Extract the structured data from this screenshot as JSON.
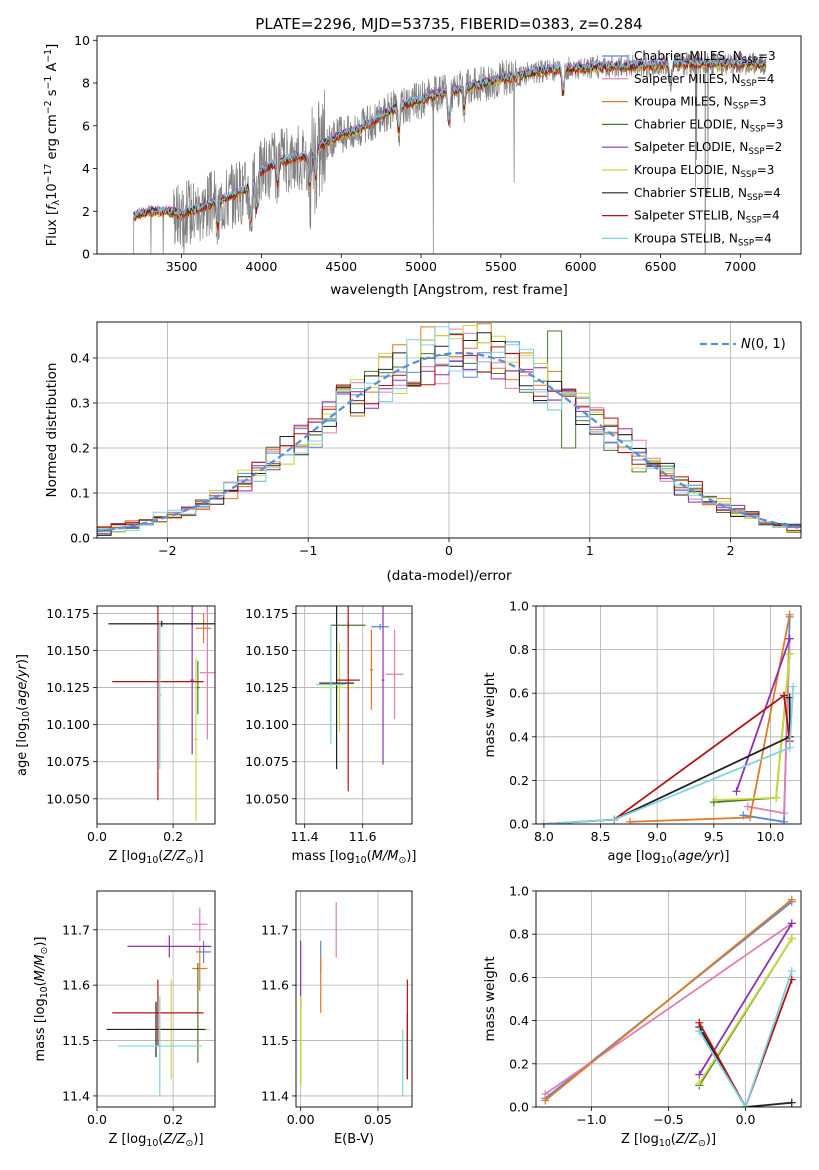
{
  "figure": {
    "title": "PLATE=2296, MJD=53735, FIBERID=0383, z=0.284",
    "colors": {
      "Chabrier MILES": "#5a86d6",
      "Salpeter MILES": "#e07fb0",
      "Kroupa MILES": "#e07a24",
      "Chabrier ELODIE": "#4d7a2e",
      "Salpeter ELODIE": "#8f2fb2",
      "Kroupa ELODIE": "#c7dc3c",
      "Chabrier STELIB": "#222222",
      "Salpeter STELIB": "#b01515",
      "Kroupa STELIB": "#7fd2e0"
    }
  },
  "chart_data": [
    {
      "id": "spectrum",
      "type": "line",
      "title": "PLATE=2296, MJD=53735, FIBERID=0383, z=0.284",
      "xlabel": "wavelength [Angstrom, rest frame]",
      "ylabel": "Flux [f_λ 10^-17 erg cm^-2 s^-1 A^-1]",
      "xlim": [
        2970,
        7380
      ],
      "ylim": [
        0,
        10.2
      ],
      "xticks": [
        3500,
        4000,
        4500,
        5000,
        5500,
        6000,
        6500,
        7000
      ],
      "yticks": [
        0,
        2,
        4,
        6,
        8,
        10
      ],
      "grid": false,
      "legend_position": "top-right",
      "legend": [
        "Chabrier MILES, N_SSP=3",
        "Salpeter MILES, N_SSP=4",
        "Kroupa MILES, N_SSP=3",
        "Chabrier ELODIE, N_SSP=3",
        "Salpeter ELODIE, N_SSP=2",
        "Kroupa ELODIE, N_SSP=3",
        "Chabrier STELIB, N_SSP=4",
        "Salpeter STELIB, N_SSP=4",
        "Kroupa STELIB, N_SSP=4"
      ],
      "data_color": "#808080",
      "continuum": {
        "x": [
          3200,
          3300,
          3400,
          3500,
          3600,
          3700,
          3800,
          3900,
          4000,
          4100,
          4200,
          4300,
          4400,
          4500,
          4600,
          4700,
          4800,
          4900,
          5000,
          5100,
          5200,
          5300,
          5400,
          5500,
          5600,
          5700,
          5800,
          5900,
          6000,
          6200,
          6400,
          6600,
          6800,
          7000,
          7150
        ],
        "y": [
          1.8,
          2.0,
          2.0,
          1.9,
          2.1,
          2.4,
          2.7,
          3.0,
          3.9,
          4.3,
          4.5,
          4.6,
          5.2,
          5.6,
          5.8,
          6.2,
          6.7,
          7.0,
          7.2,
          7.5,
          7.6,
          7.8,
          8.0,
          8.2,
          8.3,
          8.5,
          8.6,
          8.7,
          8.7,
          8.8,
          8.8,
          8.9,
          8.9,
          8.9,
          8.9
        ]
      },
      "absorption_lines": [
        {
          "x": 3727,
          "depth": 1.2
        },
        {
          "x": 3934,
          "depth": 1.8
        },
        {
          "x": 3969,
          "depth": 1.6
        },
        {
          "x": 4101,
          "depth": 1.0
        },
        {
          "x": 4304,
          "depth": 1.5
        },
        {
          "x": 4340,
          "depth": 1.2
        },
        {
          "x": 4861,
          "depth": 1.2
        },
        {
          "x": 5175,
          "depth": 1.4
        },
        {
          "x": 5270,
          "depth": 0.9
        },
        {
          "x": 5890,
          "depth": 1.2
        },
        {
          "x": 6563,
          "depth": 1.0
        }
      ],
      "model_series": [
        {
          "name": "Chabrier MILES",
          "color": "#5a86d6",
          "offset": 0.05
        },
        {
          "name": "Salpeter MILES",
          "color": "#e07fb0",
          "offset": 0.1
        },
        {
          "name": "Kroupa MILES",
          "color": "#e07a24",
          "offset": -0.1
        },
        {
          "name": "Chabrier ELODIE",
          "color": "#4d7a2e",
          "offset": 0.0
        },
        {
          "name": "Salpeter ELODIE",
          "color": "#8f2fb2",
          "offset": 0.08
        },
        {
          "name": "Kroupa ELODIE",
          "color": "#c7dc3c",
          "offset": -0.05
        },
        {
          "name": "Chabrier STELIB",
          "color": "#222222",
          "offset": 0.02
        },
        {
          "name": "Salpeter STELIB",
          "color": "#b01515",
          "offset": -0.08
        },
        {
          "name": "Kroupa STELIB",
          "color": "#7fd2e0",
          "offset": 0.06
        }
      ]
    },
    {
      "id": "residuals",
      "type": "line",
      "xlabel": "(data-model)/error",
      "ylabel": "Normed distribution",
      "xlim": [
        -2.5,
        2.5
      ],
      "ylim": [
        0,
        0.48
      ],
      "xticks": [
        -2,
        -1,
        0,
        1,
        2
      ],
      "yticks": [
        0.0,
        0.1,
        0.2,
        0.3,
        0.4
      ],
      "grid": true,
      "legend_position": "top-right",
      "legend": [
        "N(0,1)"
      ],
      "normal_color": "#5b8fd6"
    },
    {
      "id": "age-vs-Z",
      "type": "scatter",
      "xlabel": "Z [log10(Z/Z⊙)]",
      "ylabel": "age [log10(age/yr)]",
      "xlim": [
        0,
        0.31
      ],
      "ylim": [
        10.033,
        10.18
      ],
      "xticks": [
        0.0,
        0.2
      ],
      "yticks": [
        10.05,
        10.075,
        10.1,
        10.125,
        10.15,
        10.175
      ],
      "grid": true,
      "points": [
        {
          "series": "Chabrier MILES",
          "x": 0.25,
          "xerr": 0.22,
          "y": 10.168,
          "yerr": 0.002
        },
        {
          "series": "Salpeter MILES",
          "x": 0.29,
          "xerr": 0.02,
          "y": 10.135,
          "yerr": 0.045
        },
        {
          "series": "Kroupa MILES",
          "x": 0.28,
          "xerr": 0.02,
          "y": 10.165,
          "yerr": 0.01
        },
        {
          "series": "Chabrier ELODIE",
          "x": 0.265,
          "xerr": 0.005,
          "y": 10.125,
          "yerr": 0.018
        },
        {
          "series": "Salpeter ELODIE",
          "x": 0.25,
          "xerr": 0.005,
          "y": 10.13,
          "yerr": 0.05
        },
        {
          "series": "Kroupa ELODIE",
          "x": 0.26,
          "xerr": 0.005,
          "y": 10.09,
          "yerr": 0.055
        },
        {
          "series": "Chabrier STELIB",
          "x": 0.17,
          "xerr": 0.14,
          "y": 10.168,
          "yerr": 0.002
        },
        {
          "series": "Salpeter STELIB",
          "x": 0.16,
          "xerr": 0.12,
          "y": 10.129,
          "yerr": 0.08
        },
        {
          "series": "Kroupa STELIB",
          "x": 0.165,
          "xerr": 0.005,
          "y": 10.12,
          "yerr": 0.05
        }
      ]
    },
    {
      "id": "age-vs-mass",
      "type": "scatter",
      "xlabel": "mass [log10(M/M⊙)]",
      "xlim": [
        11.37,
        11.77
      ],
      "ylim": [
        10.033,
        10.18
      ],
      "xticks": [
        11.4,
        11.6
      ],
      "yticks": [
        10.05,
        10.075,
        10.1,
        10.125,
        10.15,
        10.175
      ],
      "grid": true,
      "points": [
        {
          "series": "Chabrier MILES",
          "x": 11.66,
          "xerr": 0.03,
          "y": 10.166,
          "yerr": 0.002
        },
        {
          "series": "Salpeter MILES",
          "x": 11.71,
          "xerr": 0.03,
          "y": 10.134,
          "yerr": 0.03
        },
        {
          "series": "Kroupa MILES",
          "x": 11.63,
          "xerr": 0.005,
          "y": 10.137,
          "yerr": 0.027
        },
        {
          "series": "Chabrier ELODIE",
          "x": 11.55,
          "xerr": 0.06,
          "y": 10.167,
          "yerr": 0.002
        },
        {
          "series": "Salpeter ELODIE",
          "x": 11.67,
          "xerr": 0.005,
          "y": 10.13,
          "yerr": 0.057
        },
        {
          "series": "Kroupa ELODIE",
          "x": 11.52,
          "xerr": 0.06,
          "y": 10.125,
          "yerr": 0.03
        },
        {
          "series": "Chabrier STELIB",
          "x": 11.51,
          "xerr": 0.06,
          "y": 10.128,
          "yerr": 0.058
        },
        {
          "series": "Salpeter STELIB",
          "x": 11.55,
          "xerr": 0.04,
          "y": 10.13,
          "yerr": 0.075
        },
        {
          "series": "Kroupa STELIB",
          "x": 11.49,
          "xerr": 0.05,
          "y": 10.127,
          "yerr": 0.04
        }
      ]
    },
    {
      "id": "mass-weight-vs-age",
      "type": "line",
      "xlabel": "age [log10(age/yr)]",
      "ylabel": "mass weight",
      "xlim": [
        7.93,
        10.27
      ],
      "ylim": [
        0,
        1.0
      ],
      "xticks": [
        8.0,
        8.5,
        9.0,
        9.5,
        10.0
      ],
      "yticks": [
        0.0,
        0.2,
        0.4,
        0.6,
        0.8,
        1.0
      ],
      "grid": true,
      "series": [
        {
          "name": "Chabrier MILES",
          "x": [
            9.76,
            10.12,
            10.17
          ],
          "y": [
            0.04,
            0.01,
            0.95
          ]
        },
        {
          "name": "Salpeter MILES",
          "x": [
            9.8,
            10.12,
            10.17
          ],
          "y": [
            0.08,
            0.05,
            0.85
          ]
        },
        {
          "name": "Kroupa MILES",
          "x": [
            8.76,
            9.82,
            10.17
          ],
          "y": [
            0.01,
            0.03,
            0.96
          ]
        },
        {
          "name": "Chabrier ELODIE",
          "x": [
            9.5,
            10.05,
            10.17
          ],
          "y": [
            0.1,
            0.12,
            0.78
          ]
        },
        {
          "name": "Salpeter ELODIE",
          "x": [
            9.7,
            10.17
          ],
          "y": [
            0.15,
            0.85
          ]
        },
        {
          "name": "Kroupa ELODIE",
          "x": [
            9.52,
            10.05,
            10.17
          ],
          "y": [
            0.11,
            0.12,
            0.78
          ]
        },
        {
          "name": "Chabrier STELIB",
          "x": [
            8.0,
            8.62,
            10.17,
            10.17
          ],
          "y": [
            0.0,
            0.02,
            0.4,
            0.58
          ]
        },
        {
          "name": "Salpeter STELIB",
          "x": [
            8.62,
            10.12,
            10.17
          ],
          "y": [
            0.02,
            0.59,
            0.38
          ]
        },
        {
          "name": "Kroupa STELIB",
          "x": [
            8.0,
            8.62,
            10.17,
            10.2
          ],
          "y": [
            0.0,
            0.02,
            0.35,
            0.63
          ]
        }
      ]
    },
    {
      "id": "mass-vs-Z",
      "type": "scatter",
      "xlabel": "Z [log10(Z/Z⊙)]",
      "ylabel": "mass [log10(M/M⊙)]",
      "xlim": [
        0,
        0.31
      ],
      "ylim": [
        11.38,
        11.77
      ],
      "xticks": [
        0.0,
        0.2
      ],
      "yticks": [
        11.4,
        11.5,
        11.6,
        11.7
      ],
      "grid": true,
      "points": [
        {
          "series": "Chabrier MILES",
          "x": 0.28,
          "xerr": 0.02,
          "y": 11.66,
          "yerr": 0.02
        },
        {
          "series": "Salpeter MILES",
          "x": 0.27,
          "xerr": 0.02,
          "y": 11.71,
          "yerr": 0.03
        },
        {
          "series": "Kroupa MILES",
          "x": 0.27,
          "xerr": 0.02,
          "y": 11.63,
          "yerr": 0.04
        },
        {
          "series": "Chabrier ELODIE",
          "x": 0.265,
          "xerr": 0.005,
          "y": 11.55,
          "yerr": 0.09
        },
        {
          "series": "Salpeter ELODIE",
          "x": 0.19,
          "xerr": 0.11,
          "y": 11.67,
          "yerr": 0.02
        },
        {
          "series": "Kroupa ELODIE",
          "x": 0.195,
          "xerr": 0.1,
          "y": 11.52,
          "yerr": 0.09
        },
        {
          "series": "Chabrier STELIB",
          "x": 0.155,
          "xerr": 0.13,
          "y": 11.52,
          "yerr": 0.05
        },
        {
          "series": "Salpeter STELIB",
          "x": 0.16,
          "xerr": 0.12,
          "y": 11.55,
          "yerr": 0.06
        },
        {
          "series": "Kroupa STELIB",
          "x": 0.165,
          "xerr": 0.11,
          "y": 11.49,
          "yerr": 0.09
        }
      ]
    },
    {
      "id": "mass-vs-EBV",
      "type": "scatter",
      "xlabel": "E(B-V)",
      "xlim": [
        -0.003,
        0.072
      ],
      "ylim": [
        11.38,
        11.77
      ],
      "xticks": [
        0.0,
        0.05
      ],
      "yticks": [
        11.4,
        11.5,
        11.6,
        11.7
      ],
      "grid": true,
      "points": [
        {
          "series": "Chabrier MILES",
          "x": 0.013,
          "y": 11.65,
          "yerr": 0.03
        },
        {
          "series": "Salpeter MILES",
          "x": 0.023,
          "y": 11.7,
          "yerr": 0.05
        },
        {
          "series": "Kroupa MILES",
          "x": 0.013,
          "y": 11.6,
          "yerr": 0.05
        },
        {
          "series": "Chabrier ELODIE",
          "x": 0.0,
          "y": 11.5,
          "yerr": 0.08
        },
        {
          "series": "Salpeter ELODIE",
          "x": 0.0,
          "y": 11.62,
          "yerr": 0.06
        },
        {
          "series": "Kroupa ELODIE",
          "x": 0.0,
          "y": 11.5,
          "yerr": 0.08
        },
        {
          "series": "Chabrier STELIB",
          "x": 0.069,
          "y": 11.49,
          "yerr": 0.06
        },
        {
          "series": "Salpeter STELIB",
          "x": 0.069,
          "y": 11.52,
          "yerr": 0.09
        },
        {
          "series": "Kroupa STELIB",
          "x": 0.066,
          "y": 11.46,
          "yerr": 0.06
        }
      ]
    },
    {
      "id": "mass-weight-vs-Z",
      "type": "line",
      "xlabel": "Z [log10(Z/Z⊙)]",
      "ylabel": "mass weight",
      "xlim": [
        -1.36,
        0.36
      ],
      "ylim": [
        0,
        1.0
      ],
      "xticks": [
        -1.0,
        -0.5,
        0.0
      ],
      "yticks": [
        0.0,
        0.2,
        0.4,
        0.6,
        0.8,
        1.0
      ],
      "grid": true,
      "series": [
        {
          "name": "Chabrier MILES",
          "x": [
            -1.3,
            0.3
          ],
          "y": [
            0.04,
            0.95
          ]
        },
        {
          "name": "Salpeter MILES",
          "x": [
            -1.3,
            0.3
          ],
          "y": [
            0.06,
            0.85
          ]
        },
        {
          "name": "Kroupa MILES",
          "x": [
            -1.3,
            0.3
          ],
          "y": [
            0.03,
            0.96
          ]
        },
        {
          "name": "Chabrier ELODIE",
          "x": [
            -0.3,
            0.3
          ],
          "y": [
            0.1,
            0.78
          ]
        },
        {
          "name": "Salpeter ELODIE",
          "x": [
            -0.3,
            0.3
          ],
          "y": [
            0.15,
            0.85
          ]
        },
        {
          "name": "Kroupa ELODIE",
          "x": [
            -0.3,
            0.3
          ],
          "y": [
            0.11,
            0.78
          ]
        },
        {
          "name": "Chabrier STELIB",
          "x": [
            -0.3,
            0.0,
            0.3
          ],
          "y": [
            0.37,
            0.0,
            0.02
          ]
        },
        {
          "name": "Salpeter STELIB",
          "x": [
            -0.3,
            0.0,
            0.3
          ],
          "y": [
            0.39,
            0.0,
            0.59
          ]
        },
        {
          "name": "Kroupa STELIB",
          "x": [
            -0.3,
            0.0,
            0.3
          ],
          "y": [
            0.35,
            0.0,
            0.63
          ]
        }
      ]
    }
  ]
}
